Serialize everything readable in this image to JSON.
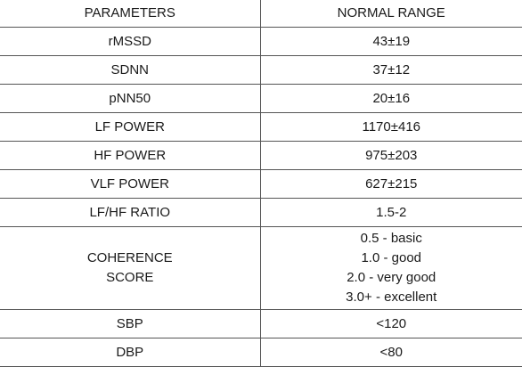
{
  "table": {
    "headers": {
      "parameters": "PARAMETERS",
      "normal_range": "NORMAL RANGE"
    },
    "rows": [
      {
        "parameter": [
          "rMSSD"
        ],
        "range": [
          "43±19"
        ]
      },
      {
        "parameter": [
          "SDNN"
        ],
        "range": [
          "37±12"
        ]
      },
      {
        "parameter": [
          "pNN50"
        ],
        "range": [
          "20±16"
        ]
      },
      {
        "parameter": [
          "LF POWER"
        ],
        "range": [
          "1170±416"
        ]
      },
      {
        "parameter": [
          "HF POWER"
        ],
        "range": [
          "975±203"
        ]
      },
      {
        "parameter": [
          "VLF POWER"
        ],
        "range": [
          "627±215"
        ]
      },
      {
        "parameter": [
          "LF/HF RATIO"
        ],
        "range": [
          "1.5-2"
        ]
      },
      {
        "parameter": [
          "COHERENCE",
          "SCORE"
        ],
        "range": [
          "0.5 - basic",
          "1.0 - good",
          "2.0 - very good",
          "3.0+ - excellent"
        ]
      },
      {
        "parameter": [
          "SBP"
        ],
        "range": [
          "<120"
        ]
      },
      {
        "parameter": [
          "DBP"
        ],
        "range": [
          "<80"
        ]
      }
    ]
  }
}
